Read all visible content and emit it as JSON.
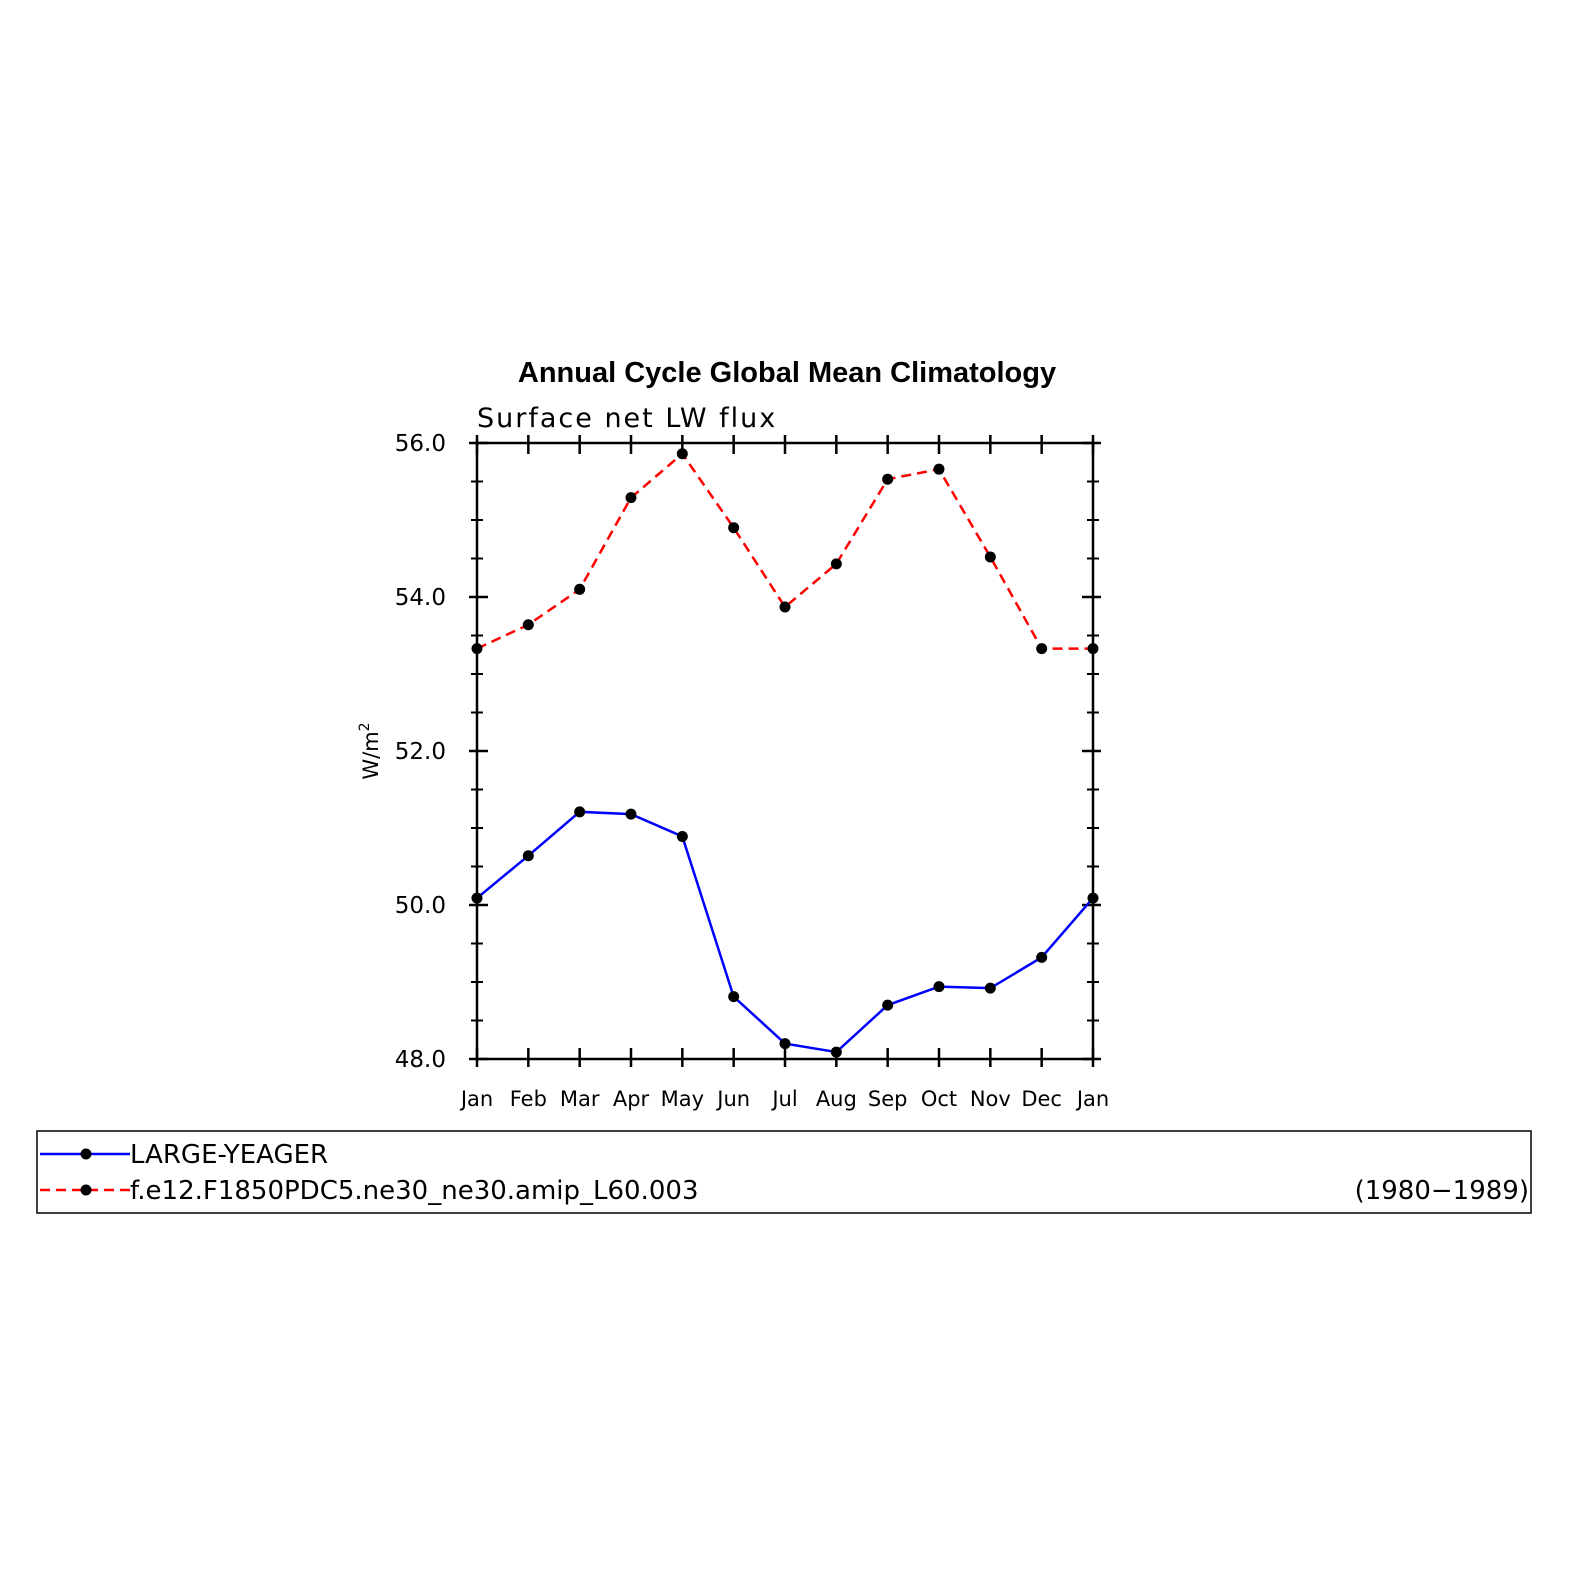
{
  "chart_data": {
    "type": "line",
    "title": "Annual Cycle Global Mean Climatology",
    "subtitle": "Surface net LW flux",
    "ylabel": "W/m",
    "ylabel_superscript": "2",
    "categories": [
      "Jan",
      "Feb",
      "Mar",
      "Apr",
      "May",
      "Jun",
      "Jul",
      "Aug",
      "Sep",
      "Oct",
      "Nov",
      "Dec",
      "Jan"
    ],
    "ylim": [
      48.0,
      56.0
    ],
    "y_ticks": [
      "48.0",
      "50.0",
      "52.0",
      "54.0",
      "56.0"
    ],
    "y_tick_values": [
      48.0,
      50.0,
      52.0,
      54.0,
      56.0
    ],
    "y_minor_step": 0.5,
    "grid": false,
    "legend_position": "below",
    "series": [
      {
        "name": "LARGE-YEAGER",
        "color": "#0000ff",
        "dash": "solid",
        "marker": "circle",
        "values": [
          50.09,
          50.64,
          51.21,
          51.18,
          50.89,
          48.81,
          48.2,
          48.09,
          48.7,
          48.94,
          48.92,
          49.32,
          50.09
        ]
      },
      {
        "name": "f.e12.F1850PDC5.ne30_ne30.amip_L60.003",
        "color": "#ff0000",
        "dash": "dashed",
        "marker": "circle",
        "values": [
          53.33,
          53.64,
          54.1,
          55.29,
          55.86,
          54.9,
          53.87,
          54.43,
          55.53,
          55.66,
          54.52,
          53.33,
          53.33
        ]
      }
    ],
    "legend_annotation": "(1980−1989)"
  }
}
